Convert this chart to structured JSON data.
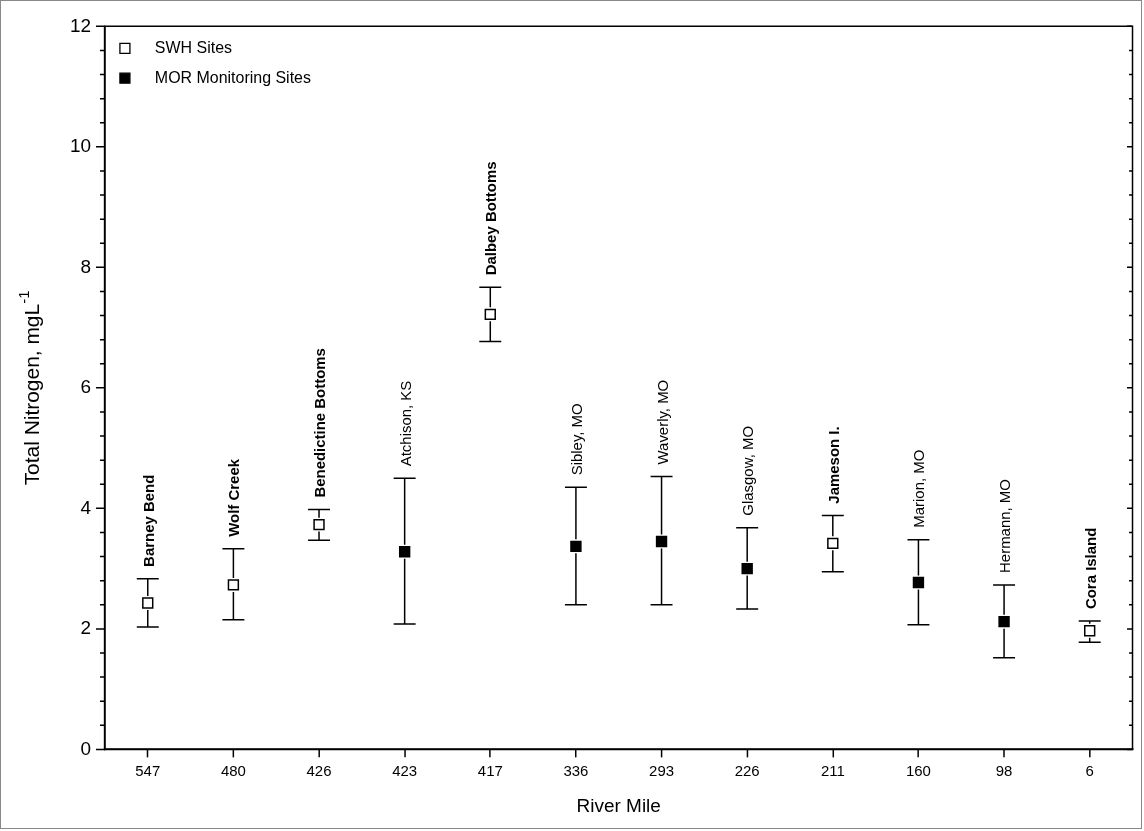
{
  "chart_data": {
    "type": "scatter",
    "xlabel": "River Mile",
    "ylabel": "Total Nitrogen, mgL$^{-1}$",
    "categories": [
      "547",
      "480",
      "426",
      "423",
      "417",
      "336",
      "293",
      "226",
      "211",
      "160",
      "98",
      "6"
    ],
    "ylim": [
      0,
      12
    ],
    "yticks": [
      0,
      {
        "value": 0.4,
        "label": null
      },
      {
        "value": 0.8,
        "label": null
      },
      {
        "value": 1.2,
        "label": null
      },
      {
        "value": 1.6,
        "label": null
      },
      2,
      {
        "value": 2.4,
        "label": null
      },
      {
        "value": 2.8,
        "label": null
      },
      {
        "value": 3.2,
        "label": null
      },
      {
        "value": 3.6,
        "label": null
      },
      4,
      {
        "value": 4.4,
        "label": null
      },
      {
        "value": 4.8,
        "label": null
      },
      {
        "value": 5.2,
        "label": null
      },
      {
        "value": 5.6,
        "label": null
      },
      6,
      {
        "value": 6.4,
        "label": null
      },
      {
        "value": 6.8,
        "label": null
      },
      {
        "value": 7.2,
        "label": null
      },
      {
        "value": 7.6,
        "label": null
      },
      8,
      {
        "value": 8.4,
        "label": null
      },
      {
        "value": 8.8,
        "label": null
      },
      {
        "value": 9.2,
        "label": null
      },
      {
        "value": 9.6,
        "label": null
      },
      10,
      {
        "value": 10.4,
        "label": null
      },
      {
        "value": 10.8,
        "label": null
      },
      {
        "value": 11.2,
        "label": null
      },
      {
        "value": 11.6,
        "label": null
      },
      12
    ],
    "marker": "square",
    "legend": "top left",
    "grid": false,
    "series": [
      {
        "name": "SWH Sites",
        "color": "#ffffff",
        "values": [
          2.43,
          2.73,
          3.73,
          null,
          7.22,
          null,
          null,
          null,
          3.42,
          null,
          null,
          1.97
        ],
        "errors": [
          [
            2.03,
            2.83
          ],
          [
            2.15,
            3.33
          ],
          [
            3.47,
            3.98
          ],
          null,
          [
            6.77,
            7.67
          ],
          null,
          null,
          null,
          [
            2.95,
            3.88
          ],
          null,
          null,
          [
            1.78,
            2.13
          ]
        ]
      },
      {
        "name": "MOR Monitoring Sites",
        "color": "#000000",
        "values": [
          null,
          null,
          null,
          3.28,
          null,
          3.37,
          3.45,
          3.0,
          null,
          2.77,
          2.12,
          null
        ],
        "errors": [
          null,
          null,
          null,
          [
            2.08,
            4.5
          ],
          null,
          [
            2.4,
            4.35
          ],
          [
            2.4,
            4.53
          ],
          [
            2.33,
            3.68
          ],
          null,
          [
            2.07,
            3.48
          ],
          [
            1.52,
            2.73
          ],
          null
        ]
      }
    ],
    "annotations": [
      {
        "text": "Barney Bend",
        "x": "547",
        "y": 2.83
      },
      {
        "text": "Wolf Creek",
        "x": "480",
        "y": 3.33
      },
      {
        "text": "Benedictine Bottoms",
        "x": "426",
        "y": 3.98
      },
      {
        "text": "Atchison, KS",
        "x": "423",
        "y": 4.5
      },
      {
        "text": "Dalbey Bottoms",
        "x": "417",
        "y": 7.67
      },
      {
        "text": "Sibley, MO",
        "x": "336",
        "y": 4.35
      },
      {
        "text": "Waverly, MO",
        "x": "293",
        "y": 4.53
      },
      {
        "text": "Glasgow, MO",
        "x": "226",
        "y": 3.68
      },
      {
        "text": "Jameson I.",
        "x": "211",
        "y": 3.88
      },
      {
        "text": "Marion, MO",
        "x": "160",
        "y": 3.48
      },
      {
        "text": "Hermann, MO",
        "x": "98",
        "y": 2.73
      },
      {
        "text": "Cora Island",
        "x": "6",
        "y": 2.13
      }
    ]
  }
}
